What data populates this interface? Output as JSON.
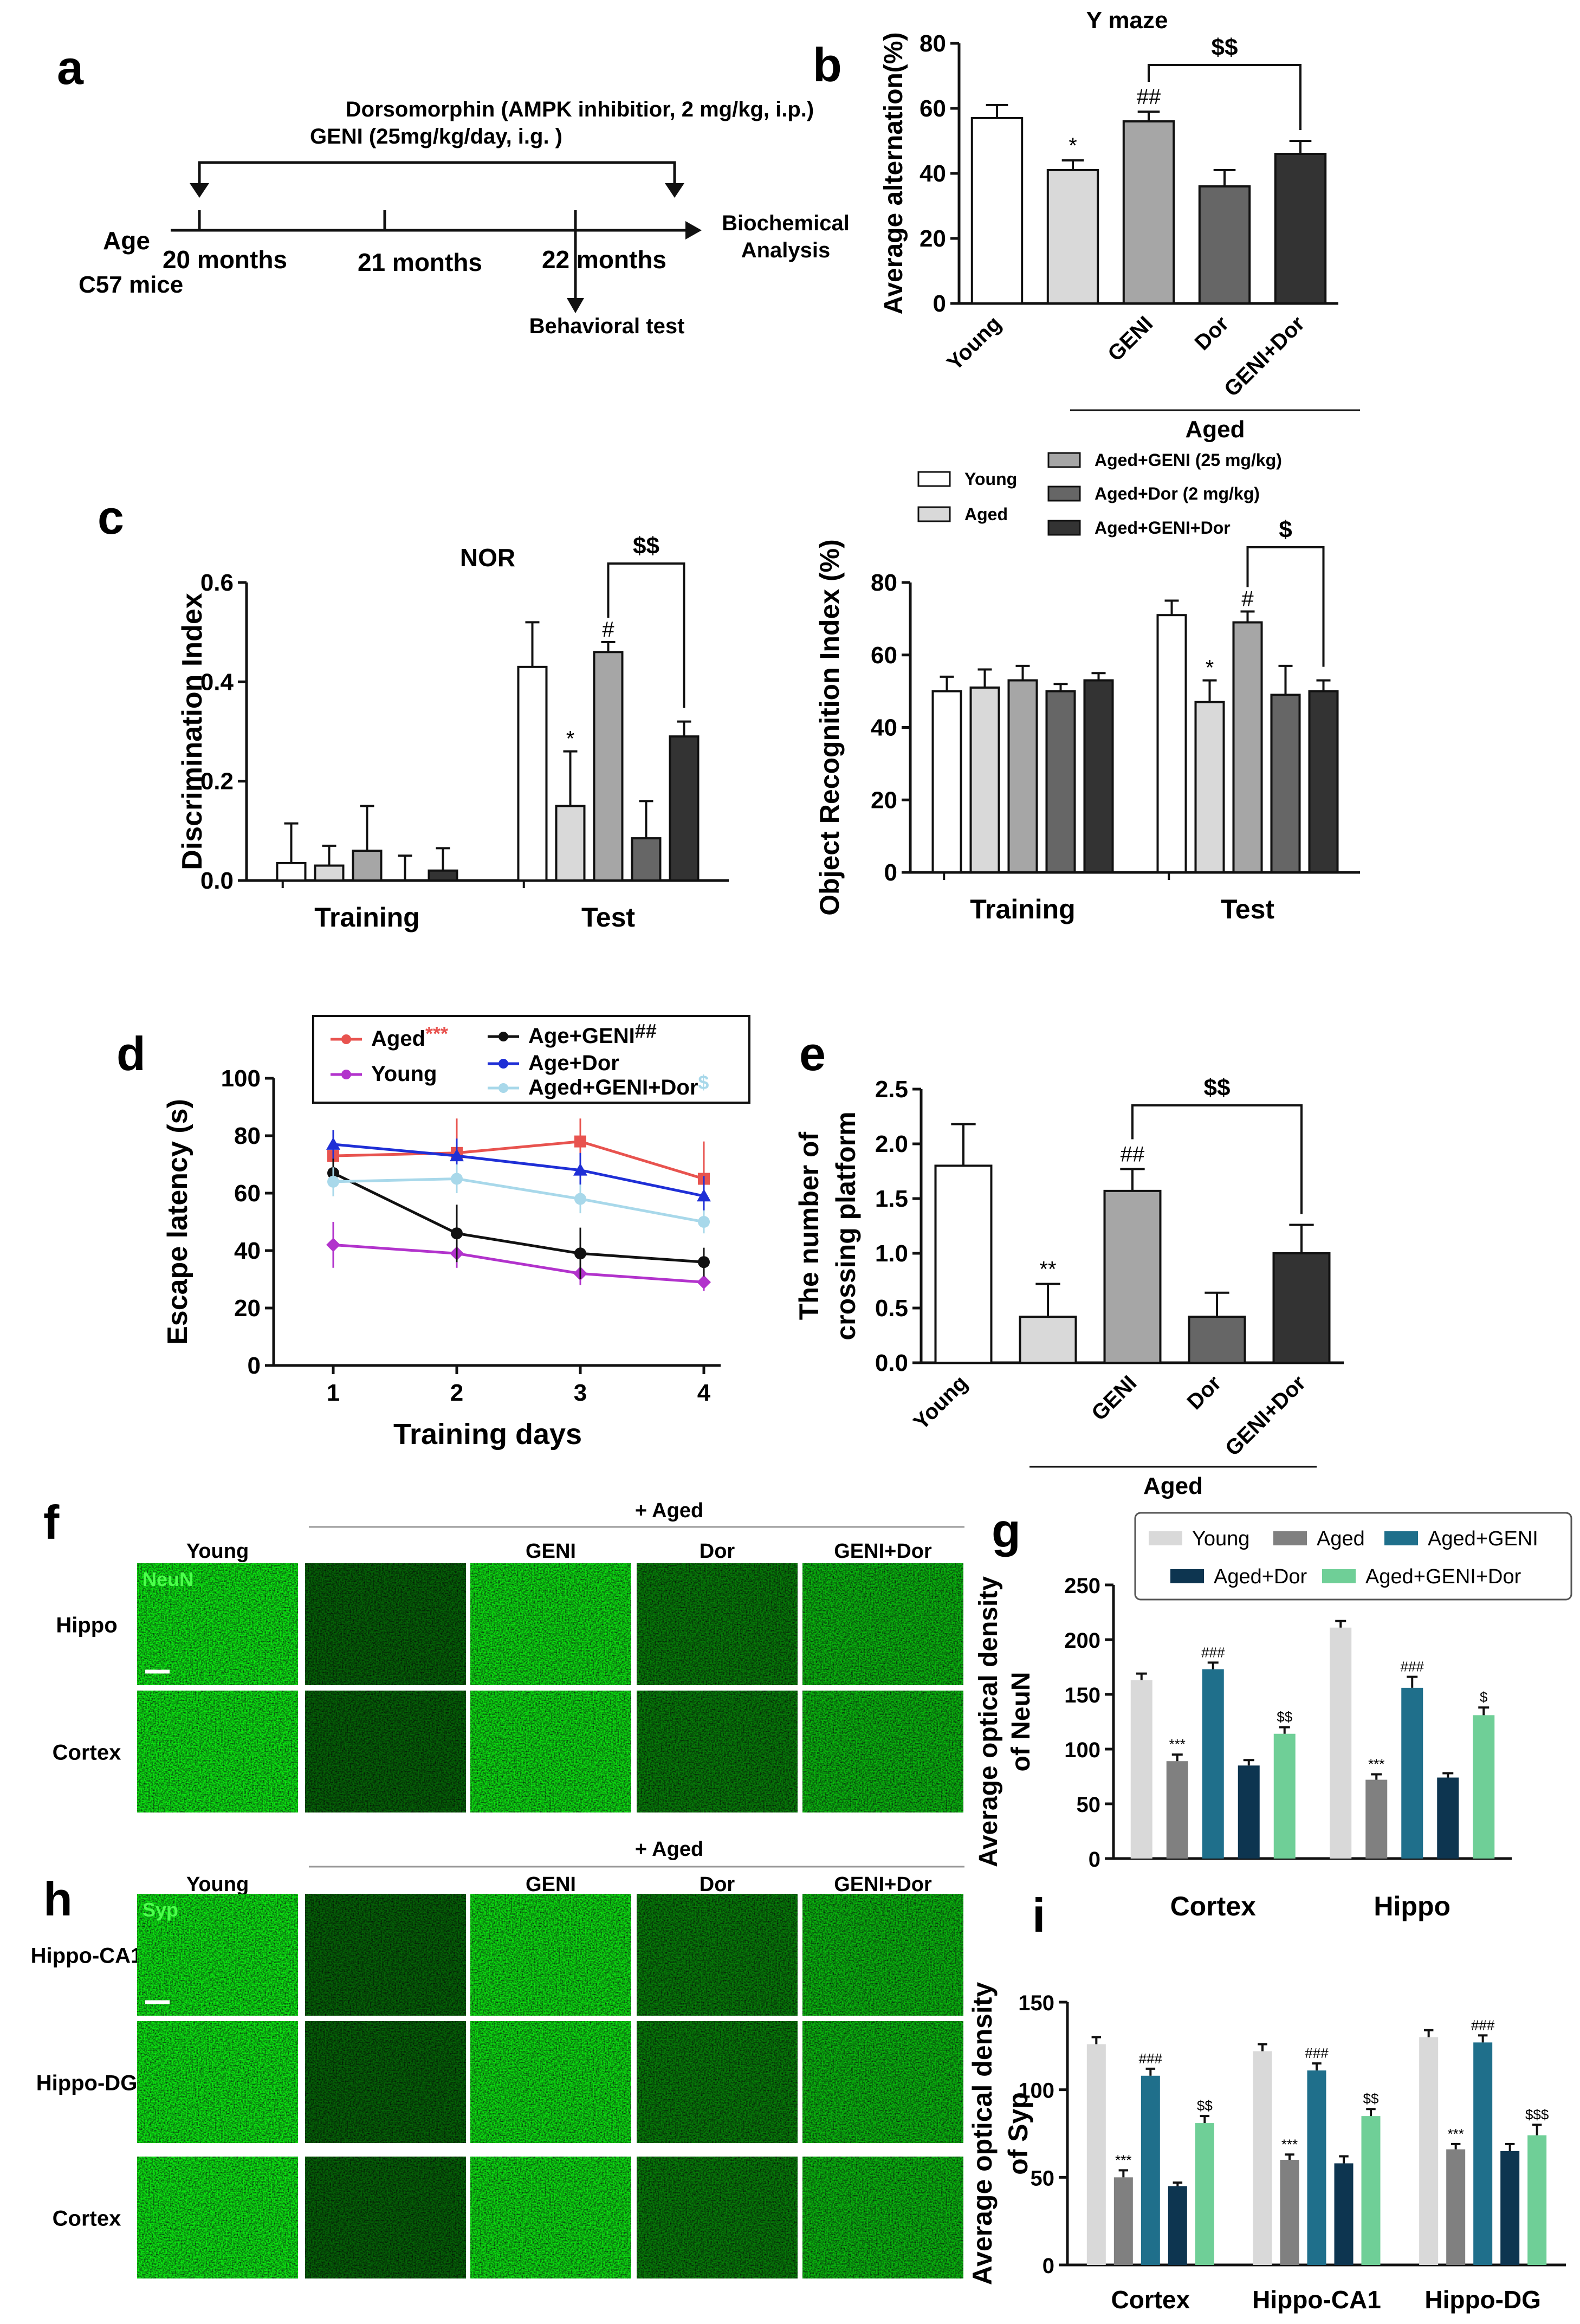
{
  "panel_labels": {
    "a": "a",
    "b": "b",
    "c": "c",
    "d": "d",
    "e": "e",
    "f": "f",
    "g": "g",
    "h": "h",
    "i": "i"
  },
  "schematic": {
    "drug_line1": "Dorsomorphin (AMPK inhibitior, 2 mg/kg, i.p.)",
    "drug_line2": "GENI (25mg/kg/day, i.g. )",
    "age_label": "Age",
    "mice_label": "C57 mice",
    "t1": "20 months",
    "t2": "21 months",
    "t3": "22 months",
    "behavioral": "Behavioral test",
    "bio1": "Biochemical",
    "bio2": "Analysis"
  },
  "colors": {
    "white": "#ffffff",
    "light_gray": "#d9d9d9",
    "mid_gray": "#a6a6a6",
    "dark_gray": "#666666",
    "darkest": "#333333",
    "g_young": "#d9d9d9",
    "g_aged": "#808080",
    "g_geni": "#1f6f8b",
    "g_dor": "#0d3550",
    "g_genidor": "#6fcf97",
    "line_aged": "#e8534f",
    "line_young": "#b233cc",
    "line_geni": "#111111",
    "line_dor": "#1f2fd6",
    "line_genidor": "#a8d8ea",
    "fluor": "#2ecc40"
  },
  "chart_data": [
    {
      "id": "b",
      "type": "bar",
      "title": "Y maze",
      "ylabel": "Average alternation(%)",
      "ylim": [
        0,
        80
      ],
      "yticks": [
        0,
        20,
        40,
        60,
        80
      ],
      "categories": [
        "Young",
        "",
        "GENI",
        "Dor",
        "GENI+Dor"
      ],
      "values": [
        57,
        41,
        56,
        36,
        46
      ],
      "errors": [
        4,
        3,
        3,
        5,
        4
      ],
      "annotations": [
        "",
        "*",
        "##",
        "",
        ""
      ],
      "bracket": {
        "from": 2,
        "to": 4,
        "label": "$$"
      },
      "group_label": "Aged"
    },
    {
      "id": "c-left",
      "type": "bar",
      "title": "NOR",
      "ylabel": "Discrimination Index",
      "ylim": [
        0,
        0.6
      ],
      "yticks": [
        "0.0",
        "0.2",
        "0.4",
        "0.6"
      ],
      "groups": [
        "Training",
        "Test"
      ],
      "series": [
        {
          "name": "Young",
          "values": [
            0.035,
            0.43
          ],
          "errors": [
            0.08,
            0.09
          ]
        },
        {
          "name": "Aged",
          "values": [
            0.03,
            0.15
          ],
          "errors": [
            0.04,
            0.11
          ]
        },
        {
          "name": "Aged+GENI (25 mg/kg)",
          "values": [
            0.06,
            0.46
          ],
          "errors": [
            0.09,
            0.02
          ]
        },
        {
          "name": "Aged+Dor (2 mg/kg)",
          "values": [
            0.0,
            0.085
          ],
          "errors": [
            0.05,
            0.075
          ]
        },
        {
          "name": "Aged+GENI+Dor",
          "values": [
            0.02,
            0.29
          ],
          "errors": [
            0.045,
            0.03
          ]
        }
      ],
      "annotations": [
        "",
        "*",
        "#",
        "",
        ""
      ],
      "bracket": {
        "from": 2,
        "to": 4,
        "label": "$$"
      }
    },
    {
      "id": "c-right",
      "type": "bar",
      "ylabel": "Object Recognition Index (%)",
      "ylim": [
        0,
        80
      ],
      "yticks": [
        0,
        20,
        40,
        60,
        80
      ],
      "groups": [
        "Training",
        "Test"
      ],
      "series": [
        {
          "name": "Young",
          "values": [
            50,
            71
          ],
          "errors": [
            4,
            4
          ]
        },
        {
          "name": "Aged",
          "values": [
            51,
            47
          ],
          "errors": [
            5,
            6
          ]
        },
        {
          "name": "Aged+GENI (25 mg/kg)",
          "values": [
            53,
            69
          ],
          "errors": [
            4,
            3
          ]
        },
        {
          "name": "Aged+Dor (2 mg/kg)",
          "values": [
            50,
            49
          ],
          "errors": [
            2,
            8
          ]
        },
        {
          "name": "Aged+GENI+Dor",
          "values": [
            53,
            50
          ],
          "errors": [
            2,
            3
          ]
        }
      ],
      "annotations": [
        "",
        "*",
        "#",
        "",
        ""
      ],
      "bracket": {
        "from": 2,
        "to": 4,
        "label": "$"
      },
      "legend": [
        "Young",
        "Aged",
        "Aged+GENI (25 mg/kg)",
        "Aged+Dor (2 mg/kg)",
        "Aged+GENI+Dor"
      ]
    },
    {
      "id": "d",
      "type": "line",
      "xlabel": "Training days",
      "ylabel": "Escape latency (s)",
      "x": [
        1,
        2,
        3,
        4
      ],
      "ylim": [
        0,
        100
      ],
      "yticks": [
        0,
        20,
        40,
        60,
        80,
        100
      ],
      "series": [
        {
          "name": "Aged",
          "sig": "***",
          "values": [
            73,
            74,
            78,
            65
          ],
          "errors": [
            8,
            12,
            8,
            13
          ]
        },
        {
          "name": "Young",
          "sig": "",
          "values": [
            42,
            39,
            32,
            29
          ],
          "errors": [
            8,
            5,
            4,
            3
          ]
        },
        {
          "name": "Age+GENI",
          "sig": "##",
          "values": [
            67,
            46,
            39,
            36
          ],
          "errors": [
            8,
            10,
            9,
            5
          ]
        },
        {
          "name": "Age+Dor",
          "sig": "",
          "values": [
            77,
            73,
            68,
            59
          ],
          "errors": [
            5,
            6,
            6,
            7
          ]
        },
        {
          "name": "Aged+GENI+Dor",
          "sig": "$",
          "values": [
            64,
            65,
            58,
            50
          ],
          "errors": [
            5,
            5,
            5,
            4
          ]
        }
      ]
    },
    {
      "id": "e",
      "type": "bar",
      "ylabel": "The number of crossing platform",
      "ylim": [
        0,
        2.5
      ],
      "yticks": [
        "0.0",
        "0.5",
        "1.0",
        "1.5",
        "2.0",
        "2.5"
      ],
      "categories": [
        "Young",
        "",
        "GENI",
        "Dor",
        "GENI+Dor"
      ],
      "values": [
        1.8,
        0.42,
        1.57,
        0.42,
        1.0
      ],
      "errors": [
        0.38,
        0.3,
        0.2,
        0.22,
        0.26
      ],
      "annotations": [
        "",
        "**",
        "##",
        "",
        ""
      ],
      "bracket": {
        "from": 2,
        "to": 4,
        "label": "$$"
      },
      "group_label": "Aged"
    },
    {
      "id": "g",
      "type": "bar",
      "ylabel": "Average optical density of NeuN",
      "ylim": [
        0,
        250
      ],
      "yticks": [
        0,
        50,
        100,
        150,
        200,
        250
      ],
      "groups": [
        "Cortex",
        "Hippo"
      ],
      "series": [
        {
          "name": "Young",
          "values": [
            163,
            211
          ],
          "errors": [
            6,
            6
          ]
        },
        {
          "name": "Aged",
          "values": [
            89,
            72
          ],
          "errors": [
            6,
            5
          ]
        },
        {
          "name": "Aged+GENI",
          "values": [
            173,
            156
          ],
          "errors": [
            6,
            10
          ]
        },
        {
          "name": "Aged+Dor",
          "values": [
            85,
            74
          ],
          "errors": [
            5,
            4
          ]
        },
        {
          "name": "Aged+GENI+Dor",
          "values": [
            114,
            131
          ],
          "errors": [
            6,
            7
          ]
        }
      ],
      "annotations": [
        [
          "",
          "***",
          "###",
          "",
          "$$"
        ],
        [
          "",
          "***",
          "###",
          "",
          "$"
        ]
      ]
    },
    {
      "id": "i",
      "type": "bar",
      "ylabel": "Average optical density of Syp",
      "ylim": [
        0,
        150
      ],
      "yticks": [
        0,
        50,
        100,
        150
      ],
      "groups": [
        "Cortex",
        "Hippo-CA1",
        "Hippo-DG"
      ],
      "series": [
        {
          "name": "Young",
          "values": [
            126,
            122,
            130
          ],
          "errors": [
            4,
            4,
            4
          ]
        },
        {
          "name": "Aged",
          "values": [
            50,
            60,
            66
          ],
          "errors": [
            4,
            3,
            3
          ]
        },
        {
          "name": "Aged+GENI",
          "values": [
            108,
            111,
            127
          ],
          "errors": [
            4,
            4,
            4
          ]
        },
        {
          "name": "Aged+Dor",
          "values": [
            45,
            58,
            65
          ],
          "errors": [
            2,
            4,
            4
          ]
        },
        {
          "name": "Aged+GENI+Dor",
          "values": [
            81,
            85,
            74
          ],
          "errors": [
            4,
            4,
            6
          ]
        }
      ],
      "annotations": [
        [
          "",
          "***",
          "###",
          "",
          "$$"
        ],
        [
          "",
          "***",
          "###",
          "",
          "$$"
        ],
        [
          "",
          "***",
          "###",
          "",
          "$$$"
        ]
      ]
    }
  ],
  "images_f": {
    "top_label": "+ Aged",
    "columns": [
      "Young",
      "GENI",
      "Dor",
      "GENI+Dor"
    ],
    "rows": [
      "Hippo",
      "Cortex"
    ],
    "stain": "NeuN"
  },
  "images_h": {
    "top_label": "+ Aged",
    "columns": [
      "Young",
      "GENI",
      "Dor",
      "GENI+Dor"
    ],
    "rows": [
      "Hippo-CA1",
      "Hippo-DG",
      "Cortex"
    ],
    "stain": "Syp"
  }
}
